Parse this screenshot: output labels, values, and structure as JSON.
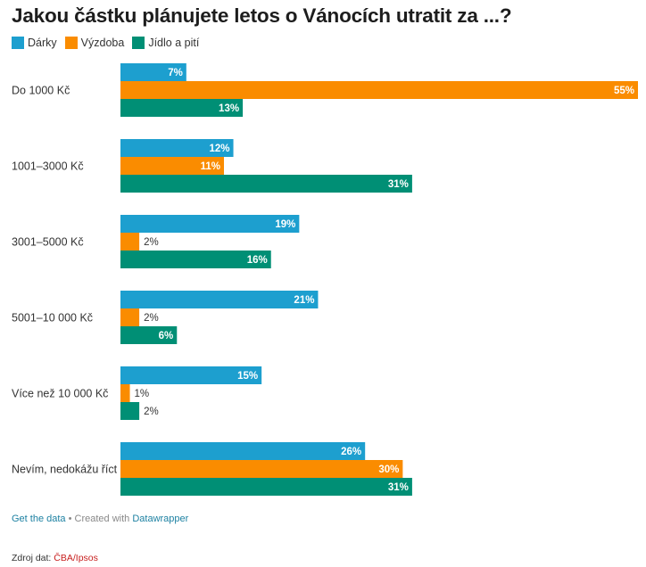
{
  "title": "Jakou částku plánujete letos o Vánocích utratit za ...?",
  "legend": [
    {
      "label": "Dárky",
      "color": "#1d9fcf"
    },
    {
      "label": "Výzdoba",
      "color": "#fa8c00"
    },
    {
      "label": "Jídlo a pití",
      "color": "#008f75"
    }
  ],
  "chart_data": {
    "type": "bar",
    "orientation": "horizontal",
    "title": "Jakou částku plánujete letos o Vánocích utratit za ...?",
    "xlabel": "",
    "ylabel": "",
    "unit": "%",
    "xlim": [
      0,
      55
    ],
    "grid": false,
    "legend_position": "top-left",
    "categories": [
      "Do 1000 Kč",
      "1001–3000 Kč",
      "3001–5000 Kč",
      "5001–10 000 Kč",
      "Více než 10 000 Kč",
      "Nevím, nedokážu říct"
    ],
    "series": [
      {
        "name": "Dárky",
        "color": "#1d9fcf",
        "values": [
          7,
          12,
          19,
          21,
          15,
          26
        ]
      },
      {
        "name": "Výzdoba",
        "color": "#fa8c00",
        "values": [
          55,
          11,
          2,
          2,
          1,
          30
        ]
      },
      {
        "name": "Jídlo a pití",
        "color": "#008f75",
        "values": [
          13,
          31,
          16,
          6,
          2,
          31
        ]
      }
    ]
  },
  "footer": {
    "get_data": "Get the data",
    "separator": " • Created with ",
    "datawrapper": "Datawrapper"
  },
  "source": {
    "label": "Zdroj dat: ",
    "name": "ČBA/Ipsos"
  }
}
